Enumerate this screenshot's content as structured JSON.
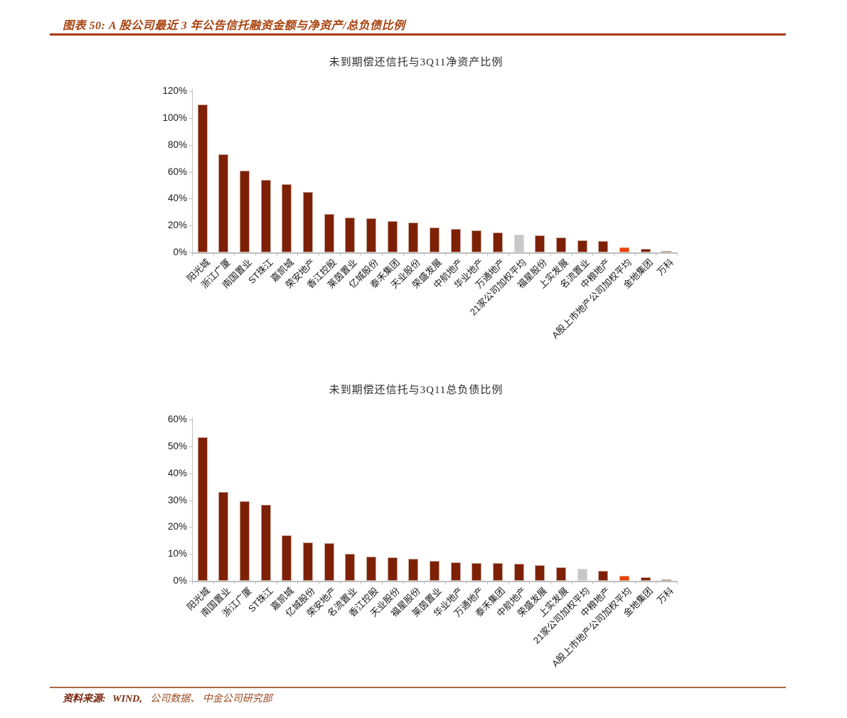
{
  "header": {
    "title": "图表 50: A 股公司最近 3 年公告信托融资金额与净资产/总负债比例"
  },
  "footer": {
    "source_label": "资料来源:",
    "source_wind": "WIND,",
    "source_rest": "公司数据、 中金公司研究部"
  },
  "colors": {
    "title_text": "#A8430F",
    "header_rule": "#A63A10",
    "source_rule": "#A5693F",
    "source_dark": "#7A2810",
    "source_light": "#9C4A22",
    "bar_primary": "#7E2005",
    "bar_primary_border": "#C9A89B",
    "bar_gray": "#C8C8C8",
    "bar_gray_border": "#DEDEDE",
    "bar_orange": "#E4420B",
    "bar_orange_border": "#EE9C72",
    "axis": "#BFBFBF",
    "axis_text": "#1A1A1A"
  },
  "chart_data": [
    {
      "type": "bar",
      "title": "未到期偿还信托与3Q11净资产比例",
      "xlabel": "",
      "ylabel": "",
      "ylim": [
        0,
        120
      ],
      "ytick_step": 20,
      "ytick_labels": [
        "0%",
        "20%",
        "40%",
        "60%",
        "80%",
        "100%",
        "120%"
      ],
      "grid": false,
      "legend": "none",
      "categories": [
        "阳光城",
        "浙江广厦",
        "南国置业",
        "ST珠江",
        "嘉凯城",
        "荣安地产",
        "香江控股",
        "莱茵置业",
        "亿城股份",
        "泰禾集团",
        "天业股份",
        "荣盛发展",
        "中航地产",
        "华业地产",
        "万通地产",
        "21家公司加权平均",
        "福星股份",
        "上实发展",
        "名流置业",
        "中粮地产",
        "A股上市地产公司加权平均",
        "金地集团",
        "万科"
      ],
      "values": [
        110,
        73,
        61,
        54,
        51,
        45,
        28.5,
        26,
        25.5,
        23,
        22,
        18.5,
        17.5,
        16.5,
        15,
        13,
        12.5,
        11,
        9,
        8.5,
        3.5,
        2.8,
        1.2
      ],
      "bar_roles": {
        "15": "average_21",
        "20": "average_a_share"
      }
    },
    {
      "type": "bar",
      "title": "未到期偿还信托与3Q11总负债比例",
      "xlabel": "",
      "ylabel": "",
      "ylim": [
        0,
        60
      ],
      "ytick_step": 10,
      "ytick_labels": [
        "0%",
        "10%",
        "20%",
        "30%",
        "40%",
        "50%",
        "60%"
      ],
      "grid": false,
      "legend": "none",
      "categories": [
        "阳光城",
        "南国置业",
        "浙江广厦",
        "ST珠江",
        "嘉凯城",
        "亿城股份",
        "荣安地产",
        "名流置业",
        "香江控股",
        "天业股份",
        "福星股份",
        "莱茵置业",
        "华业地产",
        "万通地产",
        "泰禾集团",
        "中航地产",
        "荣盛发展",
        "上实发展",
        "21家公司加权平均",
        "中粮地产",
        "A股上市地产公司加权平均",
        "金地集团",
        "万科"
      ],
      "values": [
        53.5,
        33,
        29.7,
        28.3,
        16.8,
        14.2,
        13.9,
        10,
        8.9,
        8.6,
        8.2,
        7.4,
        7,
        6.7,
        6.5,
        6.3,
        5.7,
        4.9,
        4.5,
        3.8,
        1.8,
        1.2,
        0.4
      ],
      "bar_roles": {
        "18": "average_21",
        "20": "average_a_share"
      }
    }
  ]
}
